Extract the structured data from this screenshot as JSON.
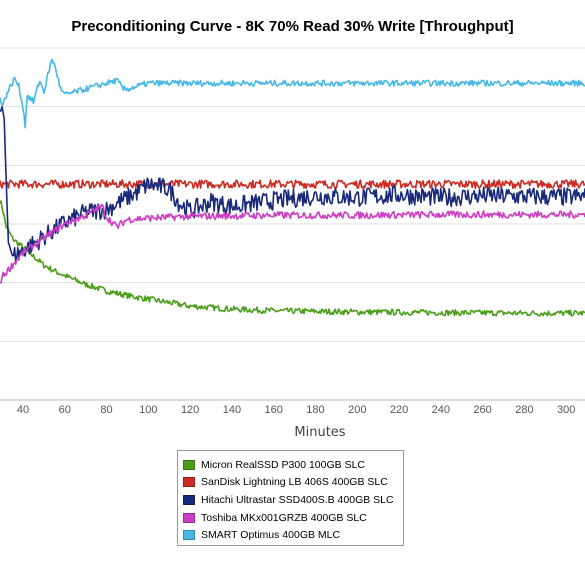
{
  "chart_data": {
    "type": "line",
    "title": "Preconditioning Curve - 8K 70% Read 30% Write [Throughput]",
    "xlabel": "Minutes",
    "ylabel": "",
    "x_ticks": [
      40,
      60,
      80,
      100,
      120,
      140,
      160,
      180,
      200,
      220,
      240,
      260,
      280,
      300
    ],
    "xlim": [
      29,
      309
    ],
    "ylim": [
      0,
      6
    ],
    "grid": true,
    "legend_position": "bottom",
    "series": [
      {
        "name": "Micron RealSSD P300 100GB SLC",
        "color": "#4a9e1a",
        "points": [
          [
            29,
            3.4
          ],
          [
            30,
            3.3
          ],
          [
            32,
            2.95
          ],
          [
            35,
            2.75
          ],
          [
            40,
            2.6
          ],
          [
            45,
            2.45
          ],
          [
            50,
            2.3
          ],
          [
            55,
            2.2
          ],
          [
            60,
            2.12
          ],
          [
            70,
            1.97
          ],
          [
            80,
            1.86
          ],
          [
            90,
            1.78
          ],
          [
            100,
            1.72
          ],
          [
            120,
            1.6
          ],
          [
            140,
            1.55
          ],
          [
            160,
            1.52
          ],
          [
            180,
            1.51
          ],
          [
            200,
            1.5
          ],
          [
            240,
            1.49
          ],
          [
            280,
            1.48
          ],
          [
            309,
            1.48
          ]
        ]
      },
      {
        "name": "SanDisk Lightning LB 406S 400GB SLC",
        "color": "#cc2a22",
        "points": [
          [
            29,
            3.68
          ],
          [
            60,
            3.68
          ],
          [
            100,
            3.68
          ],
          [
            160,
            3.68
          ],
          [
            220,
            3.68
          ],
          [
            280,
            3.68
          ],
          [
            309,
            3.68
          ]
        ]
      },
      {
        "name": "Hitachi Ultrastar SSD400S.B 400GB SLC",
        "color": "#1a2a7a",
        "points": [
          [
            29,
            4.9
          ],
          [
            30,
            4.98
          ],
          [
            31,
            4.8
          ],
          [
            32,
            3.7
          ],
          [
            33,
            2.7
          ],
          [
            35,
            2.45
          ],
          [
            40,
            2.55
          ],
          [
            50,
            2.78
          ],
          [
            60,
            3.02
          ],
          [
            70,
            3.2
          ],
          [
            80,
            3.25
          ],
          [
            90,
            3.45
          ],
          [
            95,
            3.55
          ],
          [
            100,
            3.68
          ],
          [
            110,
            3.6
          ],
          [
            115,
            3.35
          ],
          [
            120,
            3.22
          ],
          [
            130,
            3.38
          ],
          [
            140,
            3.3
          ],
          [
            160,
            3.4
          ],
          [
            180,
            3.48
          ],
          [
            200,
            3.45
          ],
          [
            220,
            3.5
          ],
          [
            240,
            3.45
          ],
          [
            260,
            3.48
          ],
          [
            280,
            3.47
          ],
          [
            300,
            3.46
          ],
          [
            309,
            3.47
          ]
        ]
      },
      {
        "name": "Toshiba MKx001GRZB 400GB SLC",
        "color": "#cc3fc2",
        "points": [
          [
            29,
            2.0
          ],
          [
            30,
            2.1
          ],
          [
            35,
            2.3
          ],
          [
            40,
            2.5
          ],
          [
            50,
            2.76
          ],
          [
            60,
            3.0
          ],
          [
            70,
            3.15
          ],
          [
            75,
            3.25
          ],
          [
            78,
            3.3
          ],
          [
            80,
            3.12
          ],
          [
            85,
            2.95
          ],
          [
            90,
            3.08
          ],
          [
            100,
            3.1
          ],
          [
            120,
            3.13
          ],
          [
            140,
            3.14
          ],
          [
            160,
            3.15
          ],
          [
            180,
            3.15
          ],
          [
            200,
            3.15
          ],
          [
            240,
            3.16
          ],
          [
            280,
            3.16
          ],
          [
            309,
            3.16
          ]
        ]
      },
      {
        "name": "SMART Optimus 400GB MLC",
        "color": "#45b8e6",
        "points": [
          [
            29,
            5.2
          ],
          [
            30,
            5.0
          ],
          [
            32,
            5.2
          ],
          [
            36,
            5.48
          ],
          [
            38,
            5.35
          ],
          [
            40,
            5.0
          ],
          [
            41,
            4.68
          ],
          [
            42,
            5.2
          ],
          [
            45,
            5.08
          ],
          [
            48,
            5.45
          ],
          [
            50,
            5.25
          ],
          [
            52,
            5.55
          ],
          [
            54,
            5.82
          ],
          [
            56,
            5.6
          ],
          [
            58,
            5.3
          ],
          [
            60,
            5.2
          ],
          [
            65,
            5.25
          ],
          [
            70,
            5.3
          ],
          [
            80,
            5.4
          ],
          [
            85,
            5.45
          ],
          [
            88,
            5.3
          ],
          [
            90,
            5.3
          ],
          [
            100,
            5.4
          ],
          [
            110,
            5.4
          ],
          [
            120,
            5.4
          ],
          [
            160,
            5.4
          ],
          [
            200,
            5.4
          ],
          [
            240,
            5.4
          ],
          [
            280,
            5.4
          ],
          [
            309,
            5.4
          ]
        ]
      }
    ]
  }
}
